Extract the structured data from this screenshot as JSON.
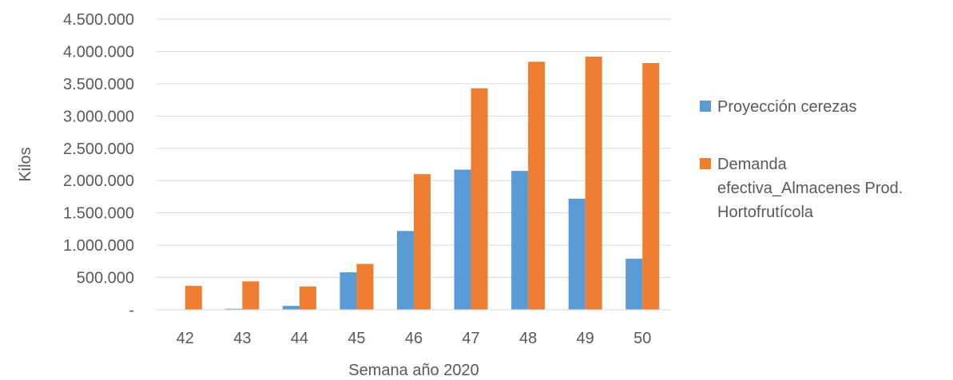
{
  "chart_data": {
    "type": "bar",
    "title": "",
    "xlabel": "Semana año 2020",
    "ylabel": "Kilos",
    "categories": [
      "42",
      "43",
      "44",
      "45",
      "46",
      "47",
      "48",
      "49",
      "50"
    ],
    "series": [
      {
        "name": "Proyección cerezas",
        "color": "#5b9bd5",
        "values": [
          0,
          15000,
          60000,
          580000,
          1220000,
          2170000,
          2150000,
          1720000,
          790000
        ]
      },
      {
        "name": "Demanda efectiva_Almacenes Prod. Hortofrutícola",
        "color": "#ed7d31",
        "values": [
          370000,
          440000,
          360000,
          710000,
          2100000,
          3430000,
          3840000,
          3920000,
          3820000
        ]
      }
    ],
    "legend_lines": [
      [
        "Proyección cerezas"
      ],
      [
        "Demanda",
        "efectiva_Almacenes Prod.",
        "Hortofrutícola"
      ]
    ],
    "ylim": [
      0,
      4500000
    ],
    "y_ticks": [
      0,
      500000,
      1000000,
      1500000,
      2000000,
      2500000,
      3000000,
      3500000,
      4000000,
      4500000
    ],
    "y_tick_labels": [
      "-",
      "500.000",
      "1.000.000",
      "1.500.000",
      "2.000.000",
      "2.500.000",
      "3.000.000",
      "3.500.000",
      "4.000.000",
      "4.500.000"
    ],
    "grid": true,
    "legend_position": "right"
  }
}
